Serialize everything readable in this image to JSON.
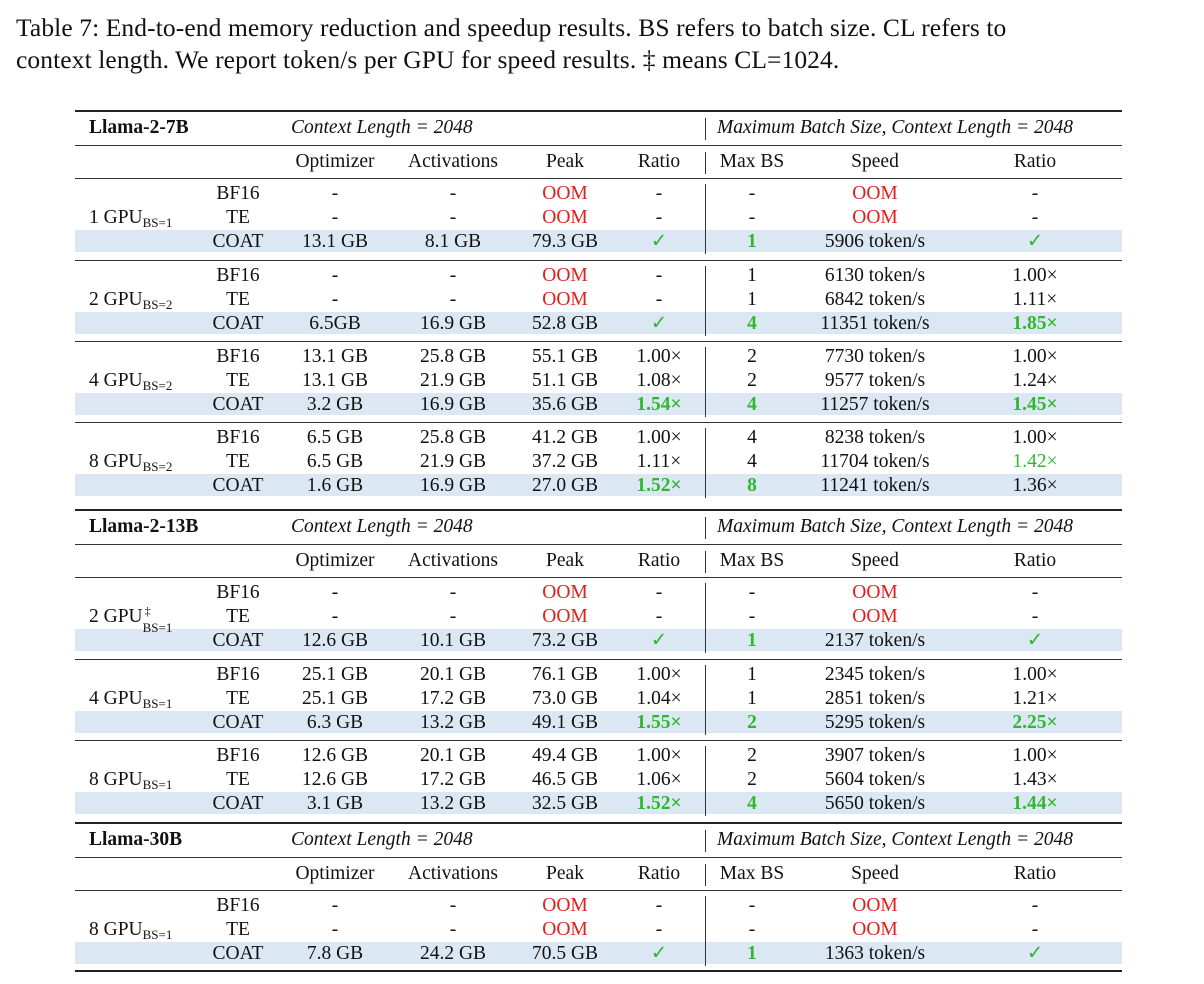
{
  "caption": {
    "line1": "Table 7: End-to-end memory reduction and speedup results. BS refers to batch size. CL refers to",
    "line2": "context length. We report token/s per GPU for speed results. ‡ means CL=1024."
  },
  "colors": {
    "oom": "#e0201c",
    "improve": "#2fb82f",
    "highlight_row": "#dbe8f4"
  },
  "columns": [
    "Optimizer",
    "Activations",
    "Peak",
    "Ratio",
    "Max BS",
    "Speed",
    "Ratio"
  ],
  "models": [
    {
      "name": "Llama-2-7B",
      "left_header": "Context Length = 2048",
      "right_header": "Maximum Batch Size, Context Length = 2048",
      "groups": [
        {
          "gpu": "1 GPU",
          "gpu_sup": "",
          "gpu_sub": "BS=1",
          "rows": [
            [
              "BF16",
              "-",
              "-",
              "OOM",
              "-",
              "-",
              "OOM",
              "-"
            ],
            [
              "TE",
              "-",
              "-",
              "OOM",
              "-",
              "-",
              "OOM",
              "-"
            ],
            [
              "COAT",
              "13.1 GB",
              "8.1 GB",
              "79.3 GB",
              "✓",
              "1",
              "5906 token/s",
              "✓"
            ]
          ]
        },
        {
          "gpu": "2 GPU",
          "gpu_sup": "",
          "gpu_sub": "BS=2",
          "rows": [
            [
              "BF16",
              "-",
              "-",
              "OOM",
              "-",
              "1",
              "6130 token/s",
              "1.00×"
            ],
            [
              "TE",
              "-",
              "-",
              "OOM",
              "-",
              "1",
              "6842 token/s",
              "1.11×"
            ],
            [
              "COAT",
              "6.5GB",
              "16.9 GB",
              "52.8 GB",
              "✓",
              "4",
              "11351 token/s",
              "1.85×"
            ]
          ]
        },
        {
          "gpu": "4 GPU",
          "gpu_sup": "",
          "gpu_sub": "BS=2",
          "rows": [
            [
              "BF16",
              "13.1 GB",
              "25.8 GB",
              "55.1 GB",
              "1.00×",
              "2",
              "7730 token/s",
              "1.00×"
            ],
            [
              "TE",
              "13.1 GB",
              "21.9 GB",
              "51.1 GB",
              "1.08×",
              "2",
              "9577 token/s",
              "1.24×"
            ],
            [
              "COAT",
              "3.2 GB",
              "16.9 GB",
              "35.6 GB",
              "1.54×",
              "4",
              "11257 token/s",
              "1.45×"
            ]
          ]
        },
        {
          "gpu": "8 GPU",
          "gpu_sup": "",
          "gpu_sub": "BS=2",
          "rows": [
            [
              "BF16",
              "6.5 GB",
              "25.8 GB",
              "41.2 GB",
              "1.00×",
              "4",
              "8238 token/s",
              "1.00×"
            ],
            [
              "TE",
              "6.5 GB",
              "21.9 GB",
              "37.2 GB",
              "1.11×",
              "4",
              "11704 token/s",
              "1.42×"
            ],
            [
              "COAT",
              "1.6 GB",
              "16.9 GB",
              "27.0 GB",
              "1.52×",
              "8",
              "11241 token/s",
              "1.36×"
            ]
          ]
        }
      ]
    },
    {
      "name": "Llama-2-13B",
      "left_header": "Context Length = 2048",
      "right_header": "Maximum Batch Size, Context Length = 2048",
      "groups": [
        {
          "gpu": "2 GPU",
          "gpu_sup": "‡",
          "gpu_sub": "BS=1",
          "rows": [
            [
              "BF16",
              "-",
              "-",
              "OOM",
              "-",
              "-",
              "OOM",
              "-"
            ],
            [
              "TE",
              "-",
              "-",
              "OOM",
              "-",
              "-",
              "OOM",
              "-"
            ],
            [
              "COAT",
              "12.6 GB",
              "10.1 GB",
              "73.2 GB",
              "✓",
              "1",
              "2137 token/s",
              "✓"
            ]
          ]
        },
        {
          "gpu": "4 GPU",
          "gpu_sup": "",
          "gpu_sub": "BS=1",
          "rows": [
            [
              "BF16",
              "25.1 GB",
              "20.1 GB",
              "76.1 GB",
              "1.00×",
              "1",
              "2345 token/s",
              "1.00×"
            ],
            [
              "TE",
              "25.1 GB",
              "17.2 GB",
              "73.0 GB",
              "1.04×",
              "1",
              "2851 token/s",
              "1.21×"
            ],
            [
              "COAT",
              "6.3 GB",
              "13.2 GB",
              "49.1 GB",
              "1.55×",
              "2",
              "5295 token/s",
              "2.25×"
            ]
          ]
        },
        {
          "gpu": "8 GPU",
          "gpu_sup": "",
          "gpu_sub": "BS=1",
          "rows": [
            [
              "BF16",
              "12.6 GB",
              "20.1 GB",
              "49.4 GB",
              "1.00×",
              "2",
              "3907 token/s",
              "1.00×"
            ],
            [
              "TE",
              "12.6 GB",
              "17.2 GB",
              "46.5 GB",
              "1.06×",
              "2",
              "5604 token/s",
              "1.43×"
            ],
            [
              "COAT",
              "3.1 GB",
              "13.2 GB",
              "32.5 GB",
              "1.52×",
              "4",
              "5650 token/s",
              "1.44×"
            ]
          ]
        }
      ]
    },
    {
      "name": "Llama-30B",
      "left_header": "Context Length = 2048",
      "right_header": "Maximum Batch Size, Context Length = 2048",
      "groups": [
        {
          "gpu": "8 GPU",
          "gpu_sup": "",
          "gpu_sub": "BS=1",
          "rows": [
            [
              "BF16",
              "-",
              "-",
              "OOM",
              "-",
              "-",
              "OOM",
              "-"
            ],
            [
              "TE",
              "-",
              "-",
              "OOM",
              "-",
              "-",
              "OOM",
              "-"
            ],
            [
              "COAT",
              "7.8 GB",
              "24.2 GB",
              "70.5 GB",
              "✓",
              "1",
              "1363 token/s",
              "✓"
            ]
          ]
        }
      ]
    }
  ]
}
